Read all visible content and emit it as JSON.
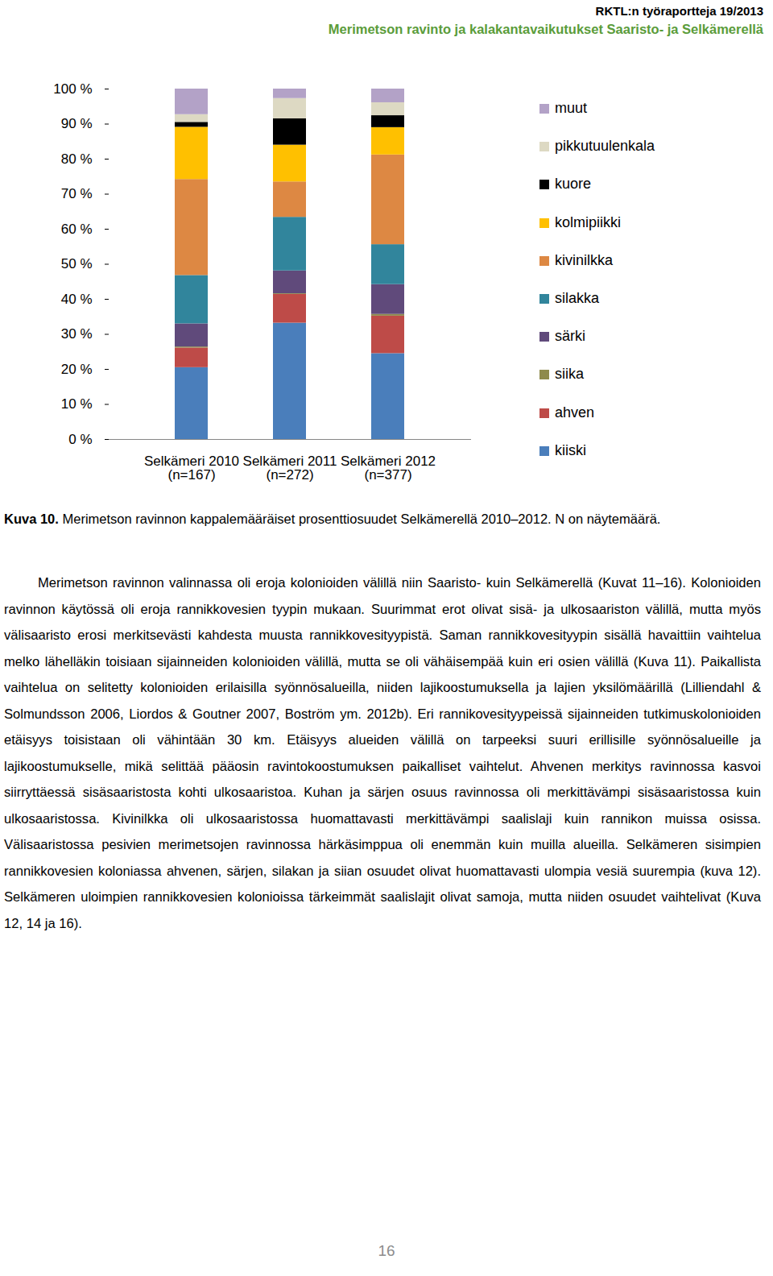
{
  "header": {
    "series": "RKTL:n työraportteja 19/2013",
    "title": "Merimetson ravinto ja kalakantavaikutukset Saaristo- ja Selkämerellä"
  },
  "chart_data": {
    "type": "bar",
    "stacked": true,
    "categories": [
      "Selkämeri 2010\n(n=167)",
      "Selkämeri 2011\n(n=272)",
      "Selkämeri 2012\n(n=377)"
    ],
    "series": [
      {
        "name": "kiiski",
        "color": "#4a7ebb",
        "values": [
          20.5,
          33.2,
          24.5
        ]
      },
      {
        "name": "ahven",
        "color": "#be4b48",
        "values": [
          5.6,
          8.2,
          10.7
        ]
      },
      {
        "name": "siika",
        "color": "#8e8a4c",
        "values": [
          0.3,
          0.2,
          0.5
        ]
      },
      {
        "name": "särki",
        "color": "#604a7b",
        "values": [
          6.6,
          6.5,
          8.5
        ]
      },
      {
        "name": "silakka",
        "color": "#31859c",
        "values": [
          13.8,
          15.3,
          11.4
        ]
      },
      {
        "name": "kivinilkka",
        "color": "#dd8843",
        "values": [
          27.4,
          10.1,
          25.6
        ]
      },
      {
        "name": "kolmipiikki",
        "color": "#ffc000",
        "values": [
          14.9,
          10.5,
          7.8
        ]
      },
      {
        "name": "kuore",
        "color": "#000000",
        "values": [
          1.4,
          7.5,
          3.4
        ]
      },
      {
        "name": "pikkutuulenkala",
        "color": "#ddd9c3",
        "values": [
          2.2,
          5.8,
          3.7
        ]
      },
      {
        "name": "muut",
        "color": "#b3a2c7",
        "values": [
          7.3,
          2.7,
          3.9
        ]
      }
    ],
    "ylim": [
      0,
      100
    ],
    "yticks": [
      {
        "value": 0,
        "label": "0 %"
      },
      {
        "value": 10,
        "label": "10 %"
      },
      {
        "value": 20,
        "label": "20 %"
      },
      {
        "value": 30,
        "label": "30 %"
      },
      {
        "value": 40,
        "label": "40 %"
      },
      {
        "value": 50,
        "label": "50 %"
      },
      {
        "value": 60,
        "label": "60 %"
      },
      {
        "value": 70,
        "label": "70 %"
      },
      {
        "value": 80,
        "label": "80 %"
      },
      {
        "value": 90,
        "label": "90 %"
      },
      {
        "value": 100,
        "label": "100 %"
      }
    ],
    "grid": false,
    "legend": "right"
  },
  "caption": {
    "label": "Kuva 10.",
    "text": "Merimetson ravinnon kappalemääräiset prosenttiosuudet Selkämerellä 2010–2012. N on näytemäärä."
  },
  "paragraphs": [
    "Merimetson ravinnon valinnassa oli eroja kolonioiden välillä niin Saaristo- kuin Selkämerellä (Kuvat 11–16). Kolonioiden ravinnon käytössä oli eroja rannikkovesien tyypin mukaan. Suurimmat erot olivat sisä- ja ulkosaariston välillä, mutta myös välisaaristo erosi merkitsevästi kahdesta muusta rannikkovesityypistä. Saman rannikkovesityypin sisällä havaittiin vaihtelua melko lähelläkin toisiaan sijainneiden kolonioiden välillä, mutta se oli vähäisempää kuin eri osien välillä (Kuva 11). Paikallista vaihtelua on selitetty kolonioiden erilaisilla syönnösalueilla, niiden lajikoostumuksella ja lajien yksilömäärillä (Lilliendahl & Solmundsson 2006, Liordos & Goutner 2007, Boström ym. 2012b). Eri rannikovesityypeissä sijainneiden tutkimuskolonioiden etäisyys toisistaan oli vähintään 30 km. Etäisyys alueiden välillä on tarpeeksi suuri erillisille syönnösalueille ja lajikoostumukselle, mikä selittää pääosin ravintokoostumuksen paikalliset vaihtelut. Ahvenen merkitys ravinnossa kasvoi siirryttäessä sisäsaaristosta kohti ulkosaaristoa. Kuhan ja särjen osuus ravinnossa oli merkittävämpi sisäsaaristossa kuin ulkosaaristossa. Kivinilkka oli ulkosaaristossa huomattavasti merkittävämpi saalislaji kuin rannikon muissa osissa. Välisaaristossa pesivien merimetsojen ravinnossa härkäsimppua oli enemmän kuin muilla alueilla. Selkämeren sisimpien rannikkovesien koloniassa ahvenen, särjen, silakan ja siian osuudet olivat huomattavasti ulompia vesiä suurempia (kuva 12). Selkämeren uloimpien rannikkovesien kolonioissa tärkeimmät saalislajit olivat samoja, mutta niiden osuudet vaihtelivat (Kuva 12, 14 ja 16)."
  ],
  "page_number": "16"
}
